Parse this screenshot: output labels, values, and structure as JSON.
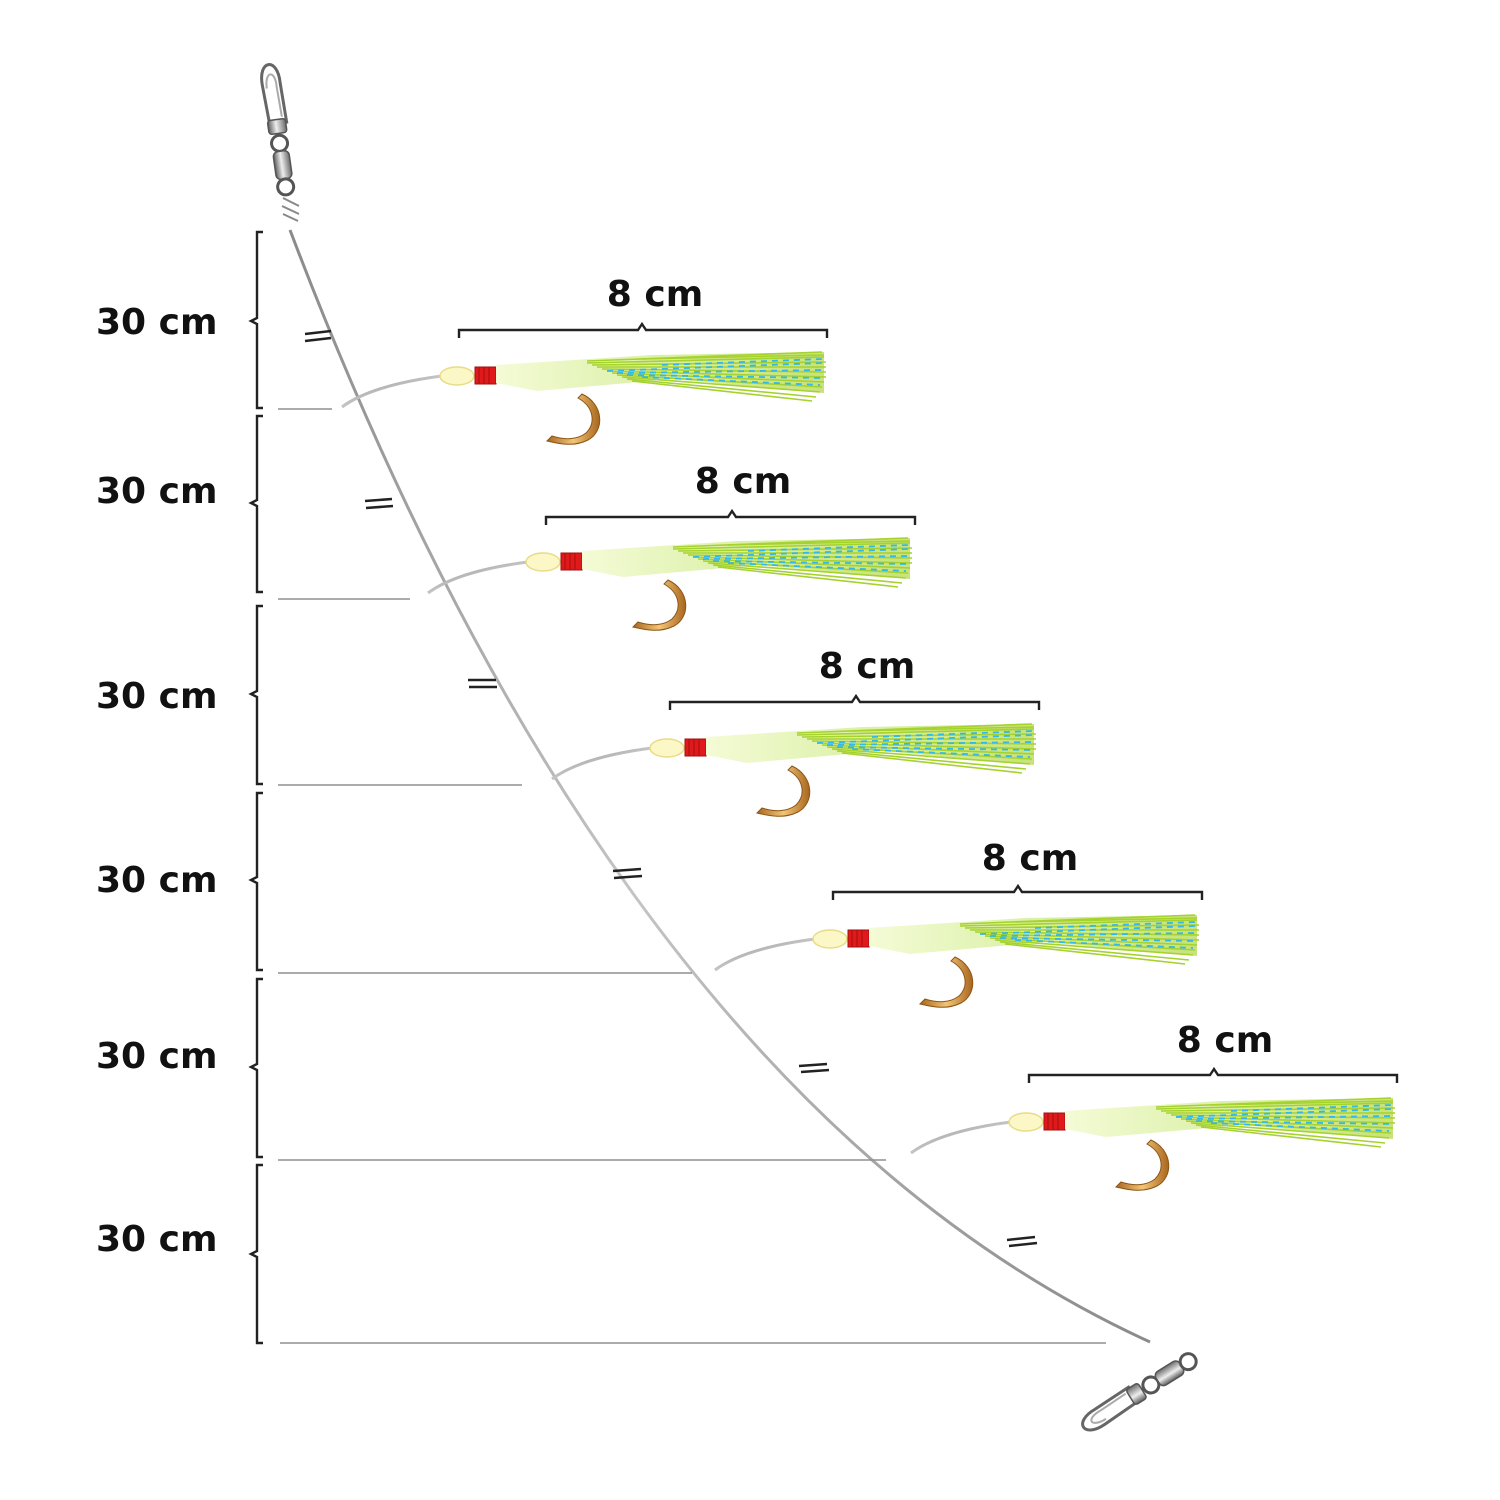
{
  "diagram": {
    "segment_labels": [
      "30 cm",
      "30 cm",
      "30 cm",
      "30 cm",
      "30 cm",
      "30 cm"
    ],
    "lure_labels": [
      "8 cm",
      "8 cm",
      "8 cm",
      "8 cm",
      "8 cm"
    ]
  },
  "colors": {
    "line": "#9a9a9a",
    "bracket": "#222222",
    "text": "#111111",
    "bead": "#fbf7c6",
    "wrap": "#e01a1a",
    "body": "#d4ec9c",
    "feather": "#a6d22e",
    "flash": "#35b8e8",
    "hook": "#c8892f",
    "metal": "#8c8c8c"
  }
}
